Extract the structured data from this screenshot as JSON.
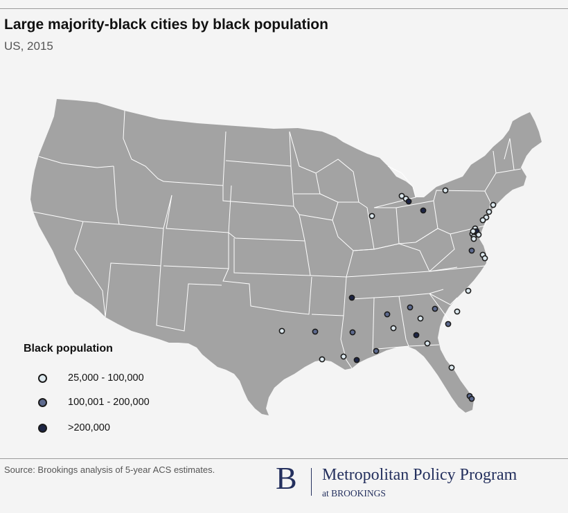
{
  "header": {
    "title": "Large majority-black cities by black population",
    "subtitle": "US, 2015"
  },
  "legend": {
    "title": "Black population",
    "items": [
      {
        "label": "25,000 - 100,000",
        "color": "#dde9ef"
      },
      {
        "label": "100,001 - 200,000",
        "color": "#5d6a8e"
      },
      {
        "label": ">200,000",
        "color": "#1d2545"
      }
    ]
  },
  "footer": {
    "source": "Source: Brookings analysis of 5-year ACS estimates.",
    "brand_letter": "B",
    "brand_name": "Metropolitan Policy Program",
    "brand_sub": "at BROOKINGS"
  },
  "map": {
    "land_color": "#a3a3a3",
    "border_color": "#ffffff",
    "background_color": "#f4f4f4",
    "cities": [
      {
        "tier": 0
      },
      {
        "tier": 0
      },
      {
        "tier": 0
      },
      {
        "tier": 2
      },
      {
        "tier": 0
      },
      {
        "tier": 2
      },
      {
        "tier": 0
      },
      {
        "tier": 0
      },
      {
        "tier": 0
      },
      {
        "tier": 0
      },
      {
        "tier": 0
      },
      {
        "tier": 2
      },
      {
        "tier": 0
      },
      {
        "tier": 0
      },
      {
        "tier": 1
      },
      {
        "tier": 0
      },
      {
        "tier": 0
      },
      {
        "tier": 0
      },
      {
        "tier": 0
      },
      {
        "tier": 2
      },
      {
        "tier": 1
      },
      {
        "tier": 1
      },
      {
        "tier": 0
      },
      {
        "tier": 1
      },
      {
        "tier": 1
      },
      {
        "tier": 1
      },
      {
        "tier": 0
      },
      {
        "tier": 0
      },
      {
        "tier": 1
      },
      {
        "tier": 2
      },
      {
        "tier": 0
      },
      {
        "tier": 1
      },
      {
        "tier": 0
      },
      {
        "tier": 2
      },
      {
        "tier": 0
      },
      {
        "tier": 0
      },
      {
        "tier": 1
      },
      {
        "tier": 1
      },
      {
        "tier": 0
      },
      {
        "tier": 0
      },
      {
        "tier": 0
      }
    ]
  }
}
